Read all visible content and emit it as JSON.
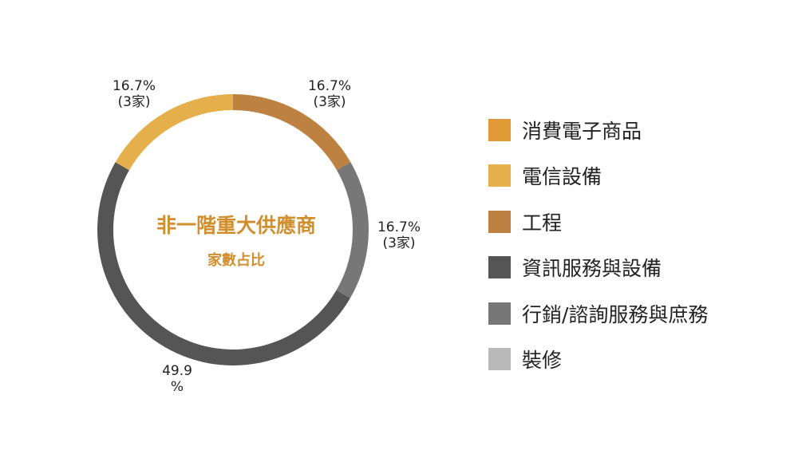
{
  "chart_data": {
    "type": "pie",
    "title": "非一階重大供應商",
    "subtitle": "家數占比",
    "slices": [
      {
        "name": "消費電子商品",
        "value": 0,
        "color": "#df9a37",
        "label_lines": []
      },
      {
        "name": "電信設備",
        "value": 16.7,
        "color": "#e5b04c",
        "label_lines": [
          "16.7%",
          "(3家)"
        ]
      },
      {
        "name": "工程",
        "value": 16.7,
        "color": "#bd8241",
        "label_lines": [
          "16.7%",
          "(3家)"
        ]
      },
      {
        "name": "資訊服務與設備",
        "value": 49.9,
        "color": "#555555",
        "label_lines": [
          "49.9",
          "%"
        ]
      },
      {
        "name": "行銷/諮詢服務與庶務",
        "value": 16.7,
        "color": "#777777",
        "label_lines": [
          "16.7%",
          "(3家)"
        ]
      },
      {
        "name": "裝修",
        "value": 0,
        "color": "#b9b9b9",
        "label_lines": []
      }
    ],
    "legend_position": "right"
  }
}
